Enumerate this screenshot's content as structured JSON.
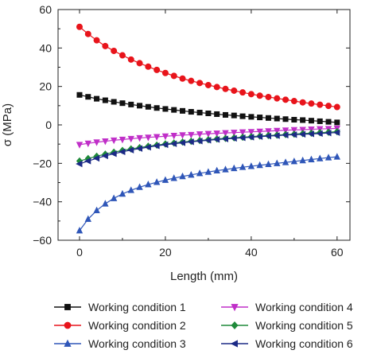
{
  "chart_data": {
    "type": "line",
    "title": "",
    "xlabel": "Length (mm)",
    "ylabel": "σ (MPa)",
    "xlim": [
      -5,
      63
    ],
    "ylim": [
      -60,
      60
    ],
    "xticks": [
      0,
      20,
      40,
      60
    ],
    "yticks": [
      -60,
      -40,
      -20,
      0,
      20,
      40,
      60
    ],
    "grid": false,
    "legend_position": "bottom",
    "series": [
      {
        "name": "Working condition 1",
        "color": "#111111",
        "marker": "square",
        "x": [
          0,
          2,
          4,
          6,
          8,
          10,
          12,
          14,
          16,
          18,
          20,
          22,
          24,
          26,
          28,
          30,
          32,
          34,
          36,
          38,
          40,
          42,
          44,
          46,
          48,
          50,
          52,
          54,
          56,
          58,
          60
        ],
        "y": [
          15.6,
          14.6,
          13.6,
          12.8,
          12.0,
          11.3,
          10.6,
          10.0,
          9.4,
          8.8,
          8.3,
          7.8,
          7.3,
          6.8,
          6.4,
          6.0,
          5.6,
          5.2,
          4.9,
          4.5,
          4.2,
          3.9,
          3.6,
          3.3,
          3.0,
          2.7,
          2.5,
          2.2,
          1.9,
          1.6,
          1.3
        ]
      },
      {
        "name": "Working condition 2",
        "color": "#e8141b",
        "marker": "circle",
        "x": [
          0,
          2,
          4,
          6,
          8,
          10,
          12,
          14,
          16,
          18,
          20,
          22,
          24,
          26,
          28,
          30,
          32,
          34,
          36,
          38,
          40,
          42,
          44,
          46,
          48,
          50,
          52,
          54,
          56,
          58,
          60
        ],
        "y": [
          51.0,
          47.3,
          44.0,
          41.0,
          38.5,
          36.2,
          34.0,
          32.1,
          30.3,
          28.6,
          27.0,
          25.5,
          24.1,
          22.9,
          21.8,
          20.7,
          19.7,
          18.7,
          17.8,
          16.9,
          16.0,
          15.2,
          14.5,
          13.8,
          13.1,
          12.4,
          11.7,
          11.1,
          10.5,
          9.9,
          9.3
        ]
      },
      {
        "name": "Working condition 3",
        "color": "#2f56b8",
        "marker": "triangle-up",
        "x": [
          0,
          2,
          4,
          6,
          8,
          10,
          12,
          14,
          16,
          18,
          20,
          22,
          24,
          26,
          28,
          30,
          32,
          34,
          36,
          38,
          40,
          42,
          44,
          46,
          48,
          50,
          52,
          54,
          56,
          58,
          60
        ],
        "y": [
          -55.0,
          -49.0,
          -44.5,
          -41.0,
          -38.2,
          -35.9,
          -34.0,
          -32.4,
          -31.0,
          -29.8,
          -28.7,
          -27.7,
          -26.8,
          -26.0,
          -25.2,
          -24.5,
          -23.8,
          -23.2,
          -22.6,
          -22.0,
          -21.5,
          -21.0,
          -20.5,
          -20.0,
          -19.5,
          -19.0,
          -18.5,
          -18.0,
          -17.5,
          -17.0,
          -16.6
        ]
      },
      {
        "name": "Working condition 4",
        "color": "#c02fc8",
        "marker": "triangle-down",
        "x": [
          0,
          2,
          4,
          6,
          8,
          10,
          12,
          14,
          16,
          18,
          20,
          22,
          24,
          26,
          28,
          30,
          32,
          34,
          36,
          38,
          40,
          42,
          44,
          46,
          48,
          50,
          52,
          54,
          56,
          58,
          60
        ],
        "y": [
          -10.3,
          -9.6,
          -9.0,
          -8.5,
          -8.0,
          -7.6,
          -7.2,
          -6.8,
          -6.5,
          -6.2,
          -5.9,
          -5.6,
          -5.3,
          -5.1,
          -4.8,
          -4.6,
          -4.4,
          -4.2,
          -4.0,
          -3.8,
          -3.6,
          -3.4,
          -3.2,
          -3.0,
          -2.8,
          -2.6,
          -2.5,
          -2.3,
          -2.1,
          -2.0,
          -1.8
        ]
      },
      {
        "name": "Working condition 5",
        "color": "#1f8a3a",
        "marker": "diamond",
        "x": [
          0,
          2,
          4,
          6,
          8,
          10,
          12,
          14,
          16,
          18,
          20,
          22,
          24,
          26,
          28,
          30,
          32,
          34,
          36,
          38,
          40,
          42,
          44,
          46,
          48,
          50,
          52,
          54,
          56,
          58,
          60
        ],
        "y": [
          -18.8,
          -17.5,
          -16.3,
          -15.2,
          -14.2,
          -13.3,
          -12.5,
          -11.8,
          -11.1,
          -10.5,
          -9.9,
          -9.4,
          -8.9,
          -8.5,
          -8.1,
          -7.7,
          -7.3,
          -7.0,
          -6.7,
          -6.4,
          -6.1,
          -5.8,
          -5.5,
          -5.3,
          -5.0,
          -4.8,
          -4.5,
          -4.3,
          -4.0,
          -3.8,
          -3.5
        ]
      },
      {
        "name": "Working condition 6",
        "color": "#1c2a86",
        "marker": "triangle-left",
        "x": [
          0,
          2,
          4,
          6,
          8,
          10,
          12,
          14,
          16,
          18,
          20,
          22,
          24,
          26,
          28,
          30,
          32,
          34,
          36,
          38,
          40,
          42,
          44,
          46,
          48,
          50,
          52,
          54,
          56,
          58,
          60
        ],
        "y": [
          -20.3,
          -18.8,
          -17.4,
          -16.1,
          -15.0,
          -14.0,
          -13.1,
          -12.3,
          -11.6,
          -10.9,
          -10.3,
          -9.8,
          -9.3,
          -8.8,
          -8.4,
          -8.0,
          -7.6,
          -7.3,
          -7.0,
          -6.7,
          -6.4,
          -6.1,
          -5.8,
          -5.6,
          -5.3,
          -5.1,
          -4.9,
          -4.7,
          -4.5,
          -4.2,
          -4.0
        ]
      }
    ]
  }
}
